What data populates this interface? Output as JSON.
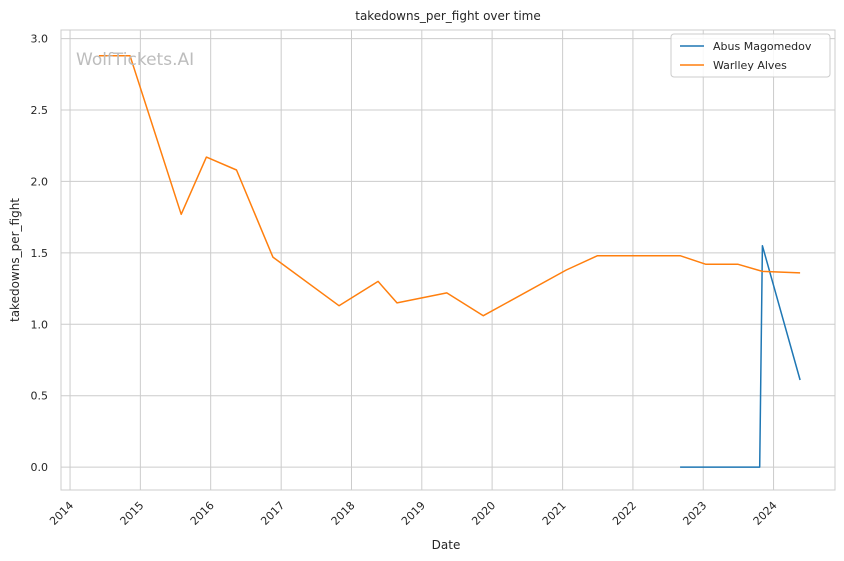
{
  "watermark": "WolfTickets.AI",
  "chart_data": {
    "type": "line",
    "title": "takedowns_per_fight over time",
    "xlabel": "Date",
    "ylabel": "takedowns_per_fight",
    "xlim": [
      "2013-11-15",
      "2024-11-15"
    ],
    "ylim": [
      -0.16,
      3.06
    ],
    "x_ticks": [
      "2014",
      "2015",
      "2016",
      "2017",
      "2018",
      "2019",
      "2020",
      "2021",
      "2022",
      "2023",
      "2024"
    ],
    "y_ticks": [
      "0.0",
      "0.5",
      "1.0",
      "1.5",
      "2.0",
      "2.5",
      "3.0"
    ],
    "grid": true,
    "legend_position": "top-right",
    "series": [
      {
        "name": "Abus Magomedov",
        "color": "#1f77b4",
        "points": [
          {
            "x": "2022-09-03",
            "y": 0.0
          },
          {
            "x": "2023-10-21",
            "y": 0.0
          },
          {
            "x": "2023-11-04",
            "y": 1.55
          },
          {
            "x": "2024-05-18",
            "y": 0.61
          }
        ]
      },
      {
        "name": "Warlley Alves",
        "color": "#ff7f0e",
        "points": [
          {
            "x": "2014-05-31",
            "y": 2.88
          },
          {
            "x": "2014-11-08",
            "y": 2.88
          },
          {
            "x": "2015-08-01",
            "y": 1.77
          },
          {
            "x": "2015-12-10",
            "y": 2.17
          },
          {
            "x": "2016-05-14",
            "y": 2.08
          },
          {
            "x": "2016-11-19",
            "y": 1.47
          },
          {
            "x": "2017-10-28",
            "y": 1.13
          },
          {
            "x": "2018-05-19",
            "y": 1.3
          },
          {
            "x": "2018-08-25",
            "y": 1.15
          },
          {
            "x": "2019-05-11",
            "y": 1.22
          },
          {
            "x": "2019-11-16",
            "y": 1.06
          },
          {
            "x": "2021-01-20",
            "y": 1.38
          },
          {
            "x": "2021-07-01",
            "y": 1.48
          },
          {
            "x": "2022-09-03",
            "y": 1.48
          },
          {
            "x": "2023-01-15",
            "y": 1.42
          },
          {
            "x": "2023-07-01",
            "y": 1.42
          },
          {
            "x": "2023-11-04",
            "y": 1.37
          },
          {
            "x": "2024-05-18",
            "y": 1.36
          }
        ]
      }
    ]
  }
}
